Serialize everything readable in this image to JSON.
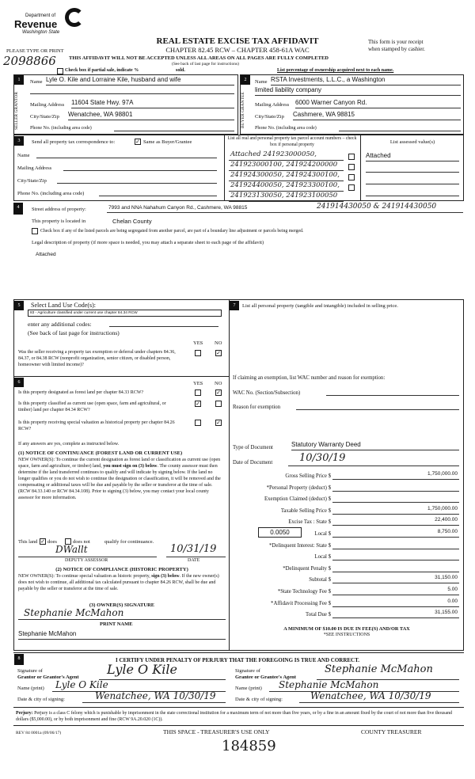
{
  "header": {
    "logo_dept": "Department of",
    "logo_name": "Revenue",
    "logo_state": "Washington State",
    "title": "REAL ESTATE EXCISE TAX AFFIDAVIT",
    "chapter": "CHAPTER 82.45 RCW – CHAPTER 458-61A WAC",
    "type_or_print": "PLEASE TYPE OR PRINT",
    "receipt_line1": "This form is your receipt",
    "receipt_line2": "when stamped by cashier.",
    "warning": "THIS AFFIDAVIT WILL NOT BE ACCEPTED UNLESS ALL AREAS ON ALL PAGES ARE FULLY COMPLETED",
    "see_back": "(See back of last page for instructions)",
    "partial_sale": "Check box if partial sale, indicate %",
    "sold": "sold.",
    "ownership_note": "List percentage of ownership acquired next to each name.",
    "handwritten_number": "2098866"
  },
  "seller": {
    "num": "1",
    "side_label": "SELLER GRANTOR",
    "name_label": "Name",
    "name": "Lyle O. Kile and Lorraine Kile, husband and wife",
    "mailing_label": "Mailing Address",
    "mailing": "11604 State Hwy. 97A",
    "city_label": "City/State/Zip",
    "city": "Wenatchee, WA 98801",
    "phone_label": "Phone No. (including area code)"
  },
  "buyer": {
    "num": "2",
    "side_label": "BUYER GRANTEE",
    "name_label": "Name",
    "name": "RSTA Investments, L.L.C., a Washington",
    "name2": "limited liability company",
    "mailing_label": "Mailing Address",
    "mailing": "6000 Warner Canyon Rd.",
    "city_label": "City/State/Zip",
    "city": "Cashmere, WA 98815",
    "phone_label": "Phone No. (including area code)"
  },
  "section3": {
    "num": "3",
    "send_label": "Send all property tax correspondence to:",
    "same_as": "Same as Buyer/Grantee",
    "same_checked": true,
    "name_label": "Name",
    "mailing_label": "Mailing Address",
    "city_label": "City/State/Zip",
    "phone_label": "Phone No. (including area code)",
    "parcel_header": "List all real and personal property tax parcel account numbers – check box if personal property",
    "assessed_header": "List assessed value(s)",
    "assessed": "Attached",
    "parcels": [
      "Attached 241923000050,",
      "241923000100, 241924200000",
      "241924300050, 241924300100,",
      "241924400050, 241923300100,",
      "241923130050, 241923100050"
    ]
  },
  "section4": {
    "num": "4",
    "street_label": "Street address of property:",
    "street": "7993 and NNA Nahahum Canyon Rd., Cashmere, WA 98815",
    "street_extra": "241914430050 & 241914430050",
    "located_label": "This property is located in",
    "county": "Chelan County",
    "segregated": "Check box if any of the listed parcels are being segregated from another parcel, are part of a boundary line adjustment or parcels being merged.",
    "legal_label": "Legal description of property (if more space is needed, you may attach a separate sheet to each page of the affidavit)",
    "legal": "Attached"
  },
  "section5": {
    "num": "5",
    "title": "Select Land Use Code(s):",
    "code": "83 - Agriculture classified under current use chapter 84.34 RCW",
    "additional": "enter any additional codes:",
    "see_back": "(See back of last page for instructions)",
    "yes": "YES",
    "no": "NO",
    "question": "Was the seller receiving a property tax exemption or deferral under chapters 84.36, 84.37, or 84.38 RCW (nonprofit organization, senior citizen, or disabled person, homeowner with limited income)?",
    "answer": "NO"
  },
  "section6": {
    "num": "6",
    "yes": "YES",
    "no": "NO",
    "questions": [
      {
        "text": "Is this property designated as forest land per chapter 84.33 RCW?",
        "answer": "NO"
      },
      {
        "text": "Is this property classified as current use (open space, farm and agricultural, or timber) land per chapter 84.34 RCW?",
        "answer": "YES"
      },
      {
        "text": "Is this property receiving special valuation as historical property per chapter 84.26 RCW?",
        "answer": "NO"
      }
    ],
    "if_yes": "If any answers are yes, complete as instructed below.",
    "notice1_title": "(1) NOTICE OF CONTINUANCE (FOREST LAND OR CURRENT USE)",
    "notice1_a": "NEW OWNER(S): To continue the current designation as forest land or classification as current use (open space, farm and agriculture, or timber) land,",
    "notice1_bold": "you must sign on (3) below",
    "notice1_b": ". The county assessor must then determine if the land transferred continues to qualify and will indicate by signing below. If the land no longer qualifies or you do not wish to continue the designation or classification, it will be removed and the compensating or additional taxes will be due and payable by the seller or transferor at the time of sale. (RCW 84.33.140 or RCW 84.34.108). Prior to signing (3) below, you may contact your local county assessor for more information.",
    "this_land": "This land",
    "does": "does",
    "does_not": "does not",
    "qualify": "qualify for continuance.",
    "qualifies": true,
    "assessor_sig": "DWallt",
    "assessor_date": "10/31/19",
    "deputy_assessor": "DEPUTY ASSESSOR",
    "date_label": "DATE",
    "notice2_title": "(2) NOTICE OF COMPLIANCE (HISTORIC PROPERTY)",
    "notice2_a": "NEW OWNER(S): To continue special valuation as historic property,",
    "notice2_bold": "sign (3) below",
    "notice2_b": ". If the new owner(s) does not wish to continue, all additional tax calculated pursuant to chapter 84.26 RCW, shall be due and payable by the seller or transferor at the time of sale.",
    "owner_sig_title": "(3) OWNER(S) SIGNATURE",
    "owner_sig": "Stephanie McMahon",
    "print_name_label": "PRINT NAME",
    "print_name": "Stephanie McMahon"
  },
  "section7": {
    "num": "7",
    "personal_property": "List all personal property (tangible and intangible) included in selling price.",
    "exemption_intro": "If claiming an exemption, list WAC number and reason for exemption:",
    "wac_label": "WAC No. (Section/Subsection)",
    "reason_label": "Reason for exemption",
    "doc_type_label": "Type of Document",
    "doc_type": "Statutory Warranty Deed",
    "doc_date_label": "Date of Document",
    "doc_date": "10/30/19",
    "local_rate": "0.0050",
    "amounts": [
      {
        "label": "Gross Selling Price $",
        "value": "1,750,000.00"
      },
      {
        "label": "*Personal Property (deduct) $",
        "value": ""
      },
      {
        "label": "Exemption Claimed (deduct) $",
        "value": ""
      },
      {
        "label": "Taxable Selling Price $",
        "value": "1,750,000.00"
      },
      {
        "label": "Excise Tax : State $",
        "value": "22,400.00"
      },
      {
        "label": "Local $",
        "value": "8,750.00"
      },
      {
        "label": "*Delinquent Interest: State $",
        "value": ""
      },
      {
        "label": "Local $",
        "value": ""
      },
      {
        "label": "*Delinquent Penalty $",
        "value": ""
      },
      {
        "label": "Subtotal $",
        "value": "31,150.00"
      },
      {
        "label": "*State Technology Fee $",
        "value": "5.00"
      },
      {
        "label": "*Affidavit Processing Fee $",
        "value": "0.00"
      },
      {
        "label": "Total Due $",
        "value": "31,155.00"
      }
    ],
    "minimum": "A MINIMUM OF $10.00 IS DUE IN FEE(S) AND/OR TAX",
    "see_instructions": "*SEE INSTRUCTIONS"
  },
  "section8": {
    "num": "8",
    "certify": "I CERTIFY UNDER PENALTY OF PERJURY THAT THE FOREGOING IS TRUE AND CORRECT.",
    "sig_of": "Signature of",
    "grantor_label": "Grantor or Grantor's Agent",
    "grantor_sig": "Lyle O Kile",
    "grantee_label": "Grantee or Grantee's Agent",
    "grantee_sig": "Stephanie McMahon",
    "name_print_label": "Name (print)",
    "grantor_name": "Lyle O Kile",
    "grantee_name": "Stephanie McMahon",
    "date_city_label": "Date & city of signing:",
    "grantor_date_city": "Wenatchee, WA 10/30/19",
    "grantee_date_city": "Wenatchee, WA 10/30/19"
  },
  "footer": {
    "perjury_bold": "Perjury:",
    "perjury": " Perjury is a class C felony which is punishable by imprisonment in the state correctional institution for a maximum term of not more than five years, or by a fine in an amount fixed by the court of not more than five thousand dollars ($5,000.00), or by both imprisonment and fine (RCW 9A.20.020 (1C)).",
    "form_id": "REV 84 0001a (09/06/17)",
    "treasurer_use": "THIS SPACE - TREASURER'S USE ONLY",
    "county_treasurer": "COUNTY TREASURER",
    "receipt_number": "184859"
  }
}
